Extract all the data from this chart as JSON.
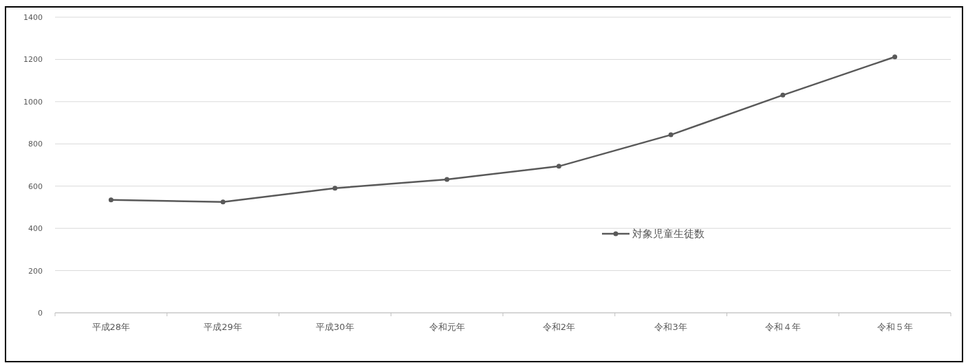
{
  "chart_data": {
    "type": "line",
    "categories": [
      "平成28年",
      "平成29年",
      "平成30年",
      "令和元年",
      "令和2年",
      "令和3年",
      "令和４年",
      "令和５年"
    ],
    "series": [
      {
        "name": "対象児童生徒数",
        "color": "#595959",
        "values": [
          535,
          525,
          590,
          632,
          694,
          843,
          1031,
          1212
        ]
      }
    ],
    "ylim": [
      0,
      1400
    ],
    "yticks": [
      0,
      200,
      400,
      600,
      800,
      1000,
      1200,
      1400
    ],
    "grid": "y",
    "legend": "right",
    "marker": "circle",
    "line_style": "solid"
  }
}
